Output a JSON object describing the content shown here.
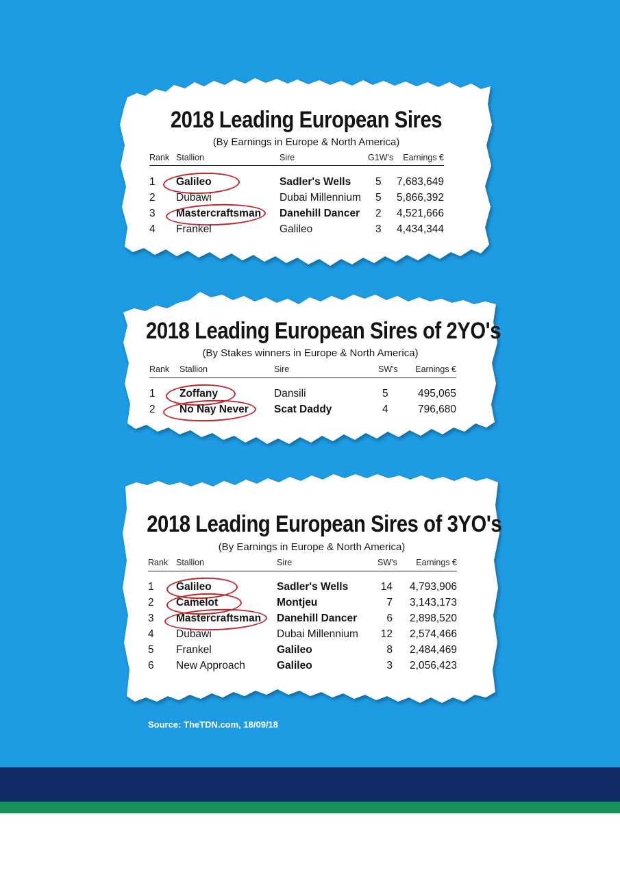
{
  "colors": {
    "background": "#1d9be3",
    "navy_band": "#132b66",
    "green_band": "#159159",
    "highlight_circle": "#c0272d",
    "paper": "#ffffff"
  },
  "tables": [
    {
      "title": "2018 Leading European Sires",
      "subtitle": "(By Earnings in Europe & North America)",
      "headers": {
        "rank": "Rank",
        "stallion": "Stallion",
        "sire": "Sire",
        "winners": "G1W's",
        "earnings": "Earnings €"
      },
      "rows": [
        {
          "rank": "1",
          "stallion": "Galileo",
          "sire": "Sadler's Wells",
          "winners": "5",
          "earnings": "7,683,649",
          "circled": true,
          "bold": true
        },
        {
          "rank": "2",
          "stallion": "Dubawi",
          "sire": "Dubai Millennium",
          "winners": "5",
          "earnings": "5,866,392",
          "circled": false,
          "bold": false
        },
        {
          "rank": "3",
          "stallion": "Mastercraftsman",
          "sire": "Danehill Dancer",
          "winners": "2",
          "earnings": "4,521,666",
          "circled": true,
          "bold": true
        },
        {
          "rank": "4",
          "stallion": "Frankel",
          "sire": "Galileo",
          "winners": "3",
          "earnings": "4,434,344",
          "circled": false,
          "bold": false
        }
      ]
    },
    {
      "title": "2018 Leading European Sires of 2YO's",
      "subtitle": "(By Stakes winners in Europe & North America)",
      "headers": {
        "rank": "Rank",
        "stallion": "Stallion",
        "sire": "Sire",
        "winners": "SW's",
        "earnings": "Earnings €"
      },
      "rows": [
        {
          "rank": "1",
          "stallion": "Zoffany",
          "sire": "Dansili",
          "winners": "5",
          "earnings": "495,065",
          "circled": true,
          "bold": false
        },
        {
          "rank": "2",
          "stallion": "No Nay Never",
          "sire": "Scat Daddy",
          "winners": "4",
          "earnings": "796,680",
          "circled": true,
          "bold": true
        }
      ]
    },
    {
      "title": "2018 Leading European Sires of 3YO's",
      "subtitle": "(By Earnings in Europe & North America)",
      "headers": {
        "rank": "Rank",
        "stallion": "Stallion",
        "sire": "Sire",
        "winners": "SW's",
        "earnings": "Earnings €"
      },
      "rows": [
        {
          "rank": "1",
          "stallion": "Galileo",
          "sire": "Sadler's Wells",
          "winners": "14",
          "earnings": "4,793,906",
          "circled": true,
          "bold": true
        },
        {
          "rank": "2",
          "stallion": "Camelot",
          "sire": "Montjeu",
          "winners": "7",
          "earnings": "3,143,173",
          "circled": true,
          "bold": true
        },
        {
          "rank": "3",
          "stallion": "Mastercraftsman",
          "sire": "Danehill Dancer",
          "winners": "6",
          "earnings": "2,898,520",
          "circled": true,
          "bold": true
        },
        {
          "rank": "4",
          "stallion": "Dubawi",
          "sire": "Dubai Millennium",
          "winners": "12",
          "earnings": "2,574,466",
          "circled": false,
          "bold": false
        },
        {
          "rank": "5",
          "stallion": "Frankel",
          "sire": "Galileo",
          "winners": "8",
          "earnings": "2,484,469",
          "circled": false,
          "bold": false,
          "sire_bold": true
        },
        {
          "rank": "6",
          "stallion": "New Approach",
          "sire": "Galileo",
          "winners": "3",
          "earnings": "2,056,423",
          "circled": false,
          "bold": false,
          "sire_bold": true
        }
      ]
    }
  ],
  "source": "Source: TheTDN.com, 18/09/18"
}
